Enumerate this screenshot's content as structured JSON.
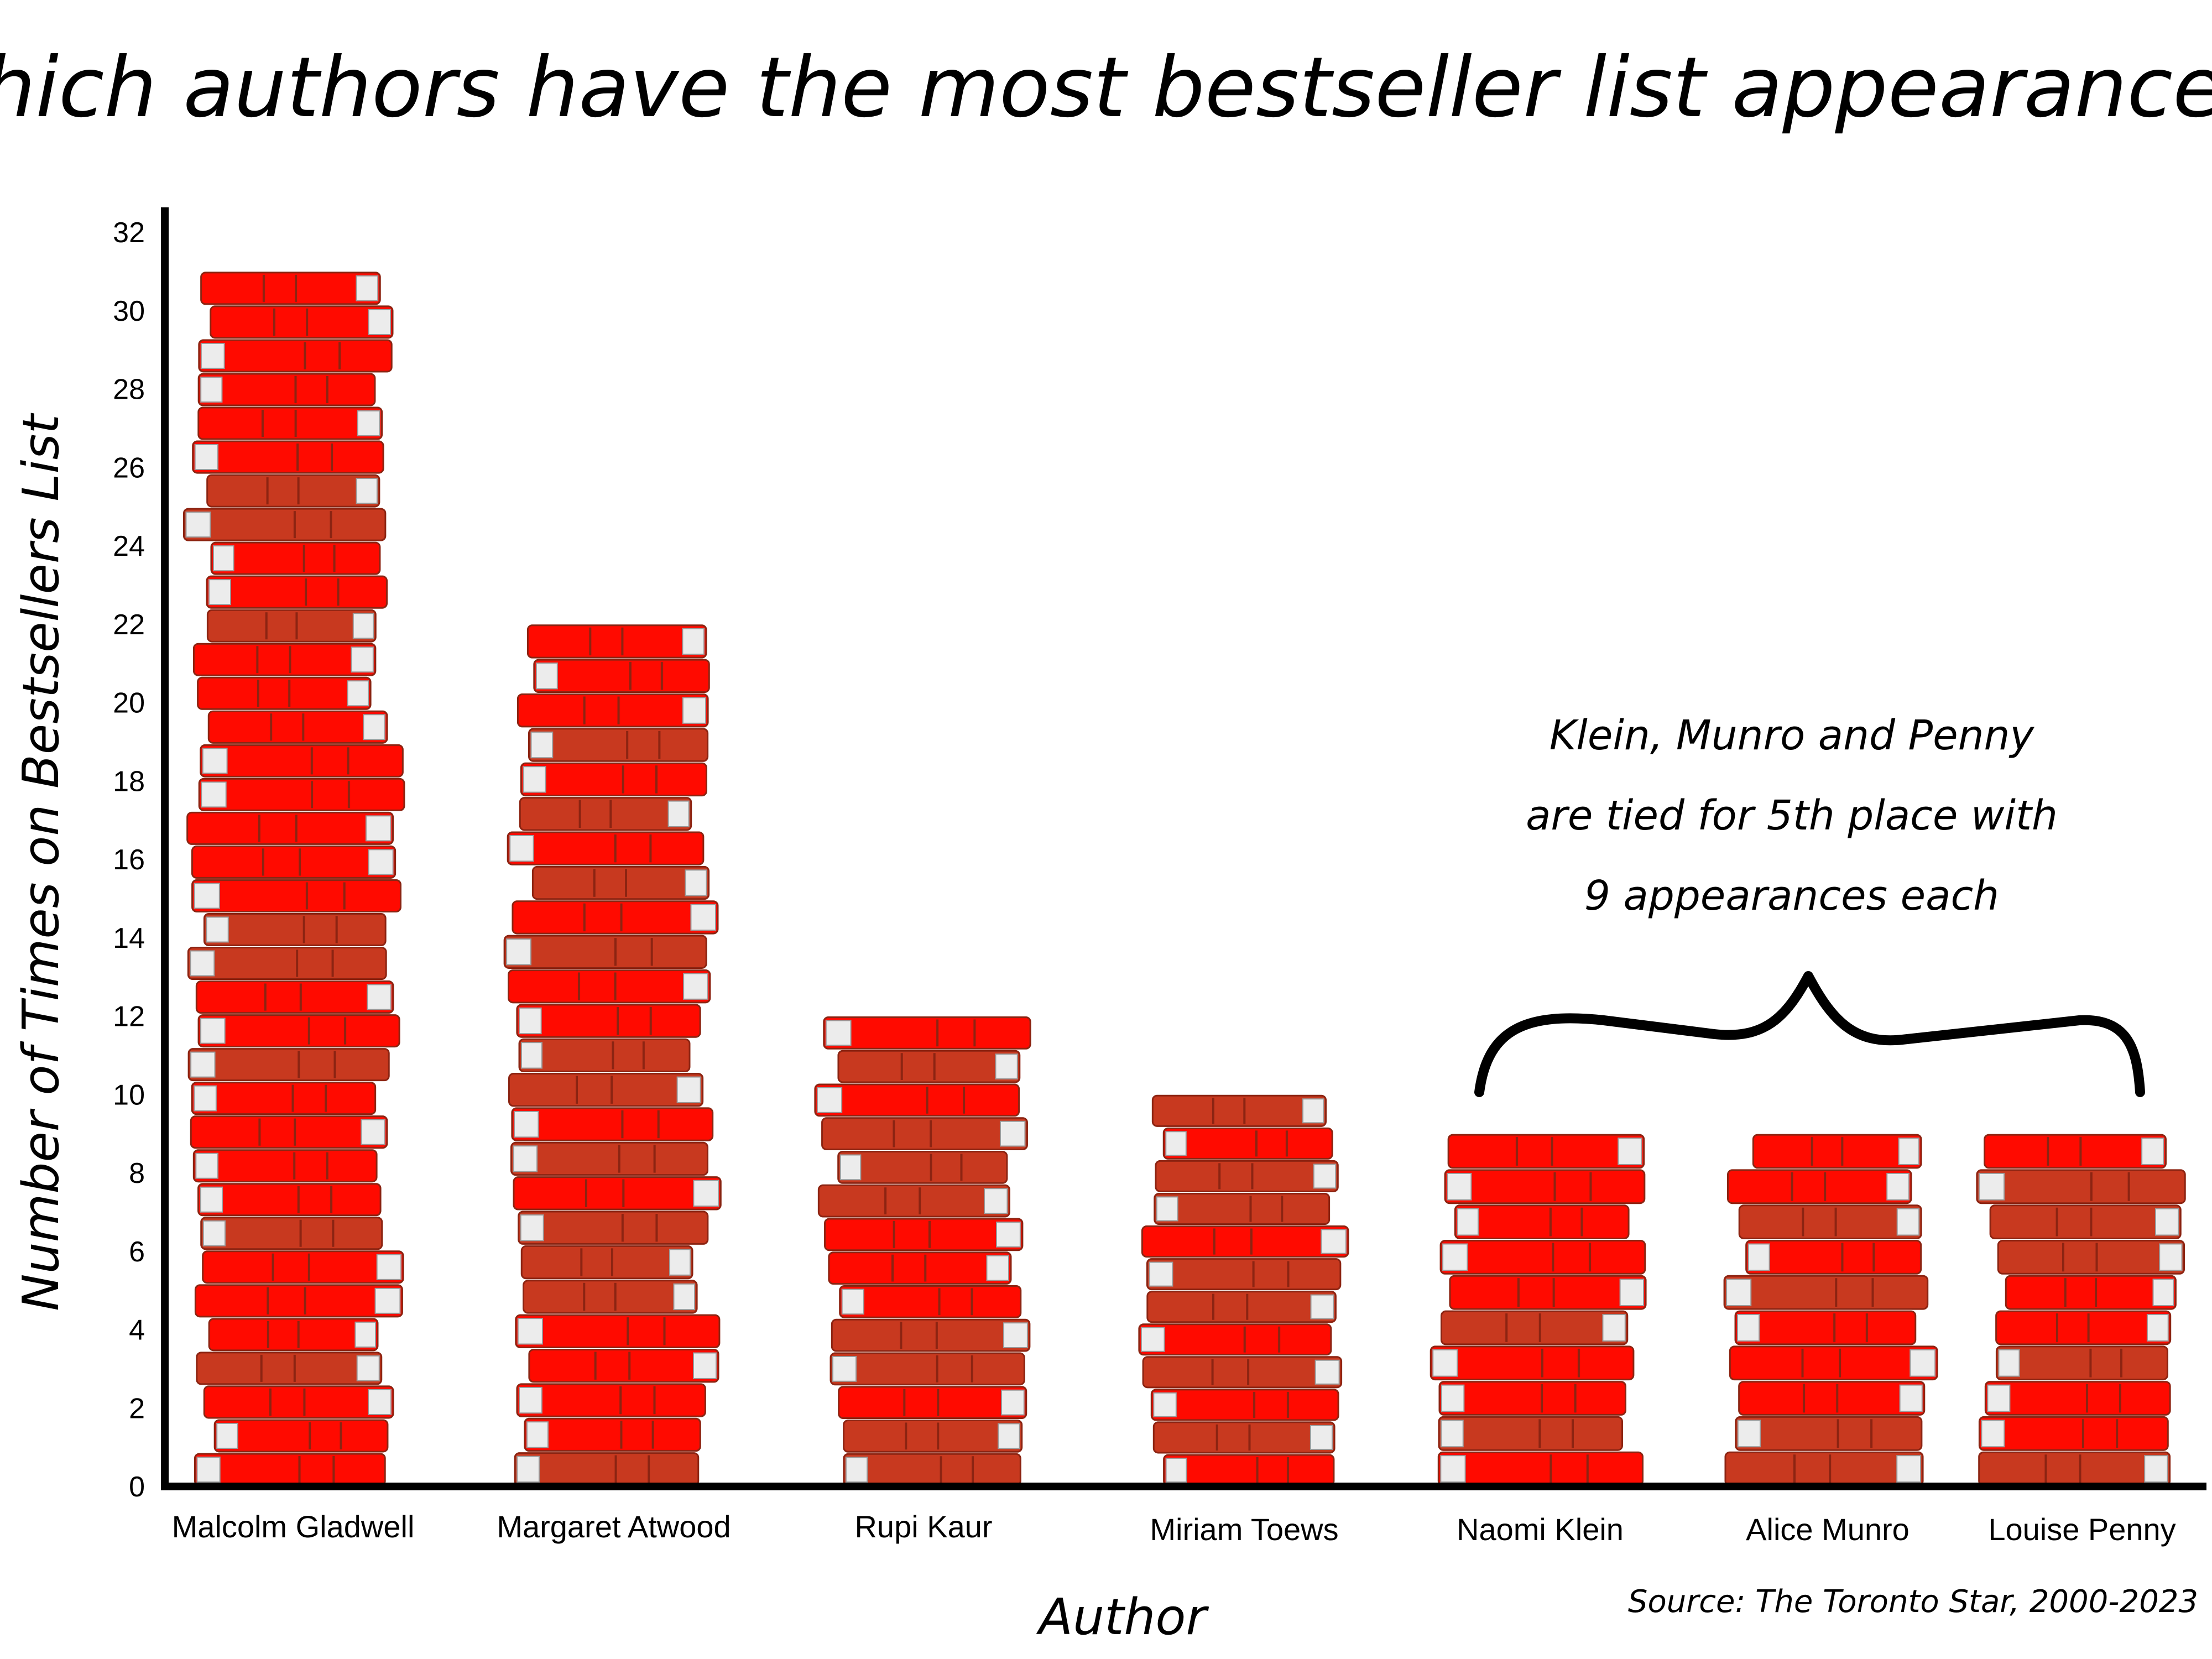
{
  "chart_data": {
    "type": "bar",
    "title": "Which authors have the most bestseller list appearances?",
    "xlabel": "Author",
    "ylabel": "Number of Times on Bestsellers List",
    "categories": [
      "Malcolm Gladwell",
      "Margaret Atwood",
      "Rupi Kaur",
      "Miriam Toews",
      "Naomi Klein",
      "Alice Munro",
      "Louise Penny"
    ],
    "values": [
      31,
      22,
      12,
      10,
      9,
      9,
      9
    ],
    "ylim": [
      0,
      32
    ],
    "yticks": [
      "0",
      "2",
      "4",
      "6",
      "8",
      "10",
      "12",
      "14",
      "16",
      "18",
      "20",
      "22",
      "24",
      "26",
      "28",
      "30",
      "32"
    ],
    "grid": false,
    "annotation": {
      "lines": [
        "Klein, Munro and Penny",
        "are tied for 5th place with",
        "9 appearances each"
      ]
    },
    "source": "Source: The Toronto Star, 2000-2023",
    "colors": {
      "book_bright": "#ff0a00",
      "book_dark": "#c8391f",
      "book_edge": "#8c2412",
      "pages": "#ececec",
      "axis": "#000000"
    }
  }
}
